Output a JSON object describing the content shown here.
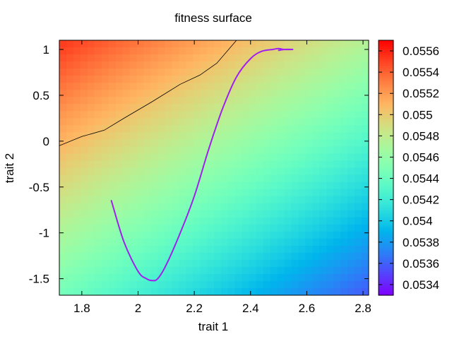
{
  "chart_data": {
    "type": "heatmap",
    "title": "fitness surface",
    "xlabel": "trait 1",
    "ylabel": "trait 2",
    "xlim": [
      1.72,
      2.82
    ],
    "ylim": [
      -1.68,
      1.1
    ],
    "xticks": [
      1.8,
      2,
      2.2,
      2.4,
      2.6,
      2.8
    ],
    "xtick_labels": [
      "1.8",
      "2",
      "2.2",
      "2.4",
      "2.6",
      "2.8"
    ],
    "yticks": [
      1,
      0.5,
      0,
      -0.5,
      -1,
      -1.5
    ],
    "ytick_labels": [
      "1",
      "0.5",
      "0",
      "-0.5",
      "-1",
      "-1.5"
    ],
    "colorbar": {
      "min": 0.0533,
      "max": 0.0557,
      "colormap": "rainbow",
      "ticks": [
        0.0556,
        0.0554,
        0.0552,
        0.055,
        0.0548,
        0.0546,
        0.0544,
        0.0542,
        0.054,
        0.0538,
        0.0536,
        0.0534
      ],
      "tick_labels": [
        "0.0556",
        "0.0554",
        "0.0552",
        "0.055",
        "0.0548",
        "0.0546",
        "0.0544",
        "0.0542",
        "0.054",
        "0.0538",
        "0.0536",
        "0.0534"
      ]
    },
    "surface_corners": {
      "top_left": 0.05554,
      "top_right": 0.05475,
      "bottom_left": 0.05445,
      "bottom_right": 0.05357
    },
    "contour_level": 0.0549,
    "contour_line": {
      "x": [
        1.72,
        1.8,
        1.88,
        1.95,
        2.05,
        2.15,
        2.22,
        2.28,
        2.35
      ],
      "y": [
        -0.05,
        0.05,
        0.12,
        0.25,
        0.43,
        0.62,
        0.72,
        0.85,
        1.1
      ]
    },
    "trajectory": {
      "color": "#a020f0",
      "x": [
        1.905,
        1.95,
        2.0,
        2.03,
        2.05,
        2.07,
        2.1,
        2.15,
        2.2,
        2.25,
        2.3,
        2.35,
        2.4,
        2.44,
        2.48,
        2.5,
        2.52,
        2.55,
        2.52,
        2.5
      ],
      "y": [
        -0.65,
        -1.1,
        -1.42,
        -1.5,
        -1.52,
        -1.5,
        -1.35,
        -1.0,
        -0.6,
        -0.1,
        0.35,
        0.7,
        0.9,
        0.98,
        1.0,
        1.01,
        1.0,
        1.0,
        1.0,
        0.99
      ]
    }
  }
}
